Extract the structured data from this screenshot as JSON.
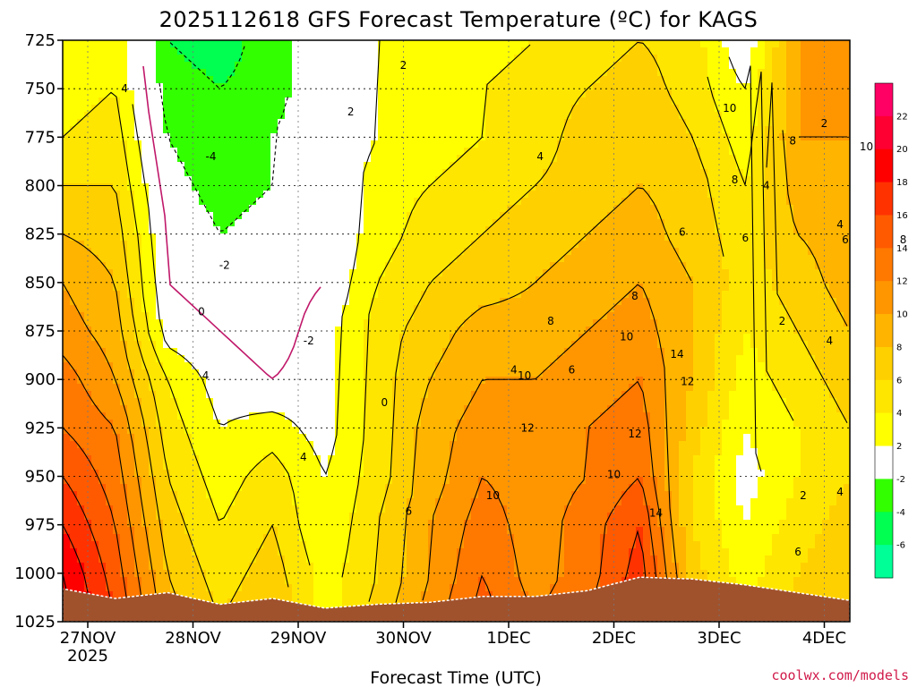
{
  "chart_data": {
    "type": "heatmap",
    "title": "2025112618 GFS Forecast Temperature (ºC) for KAGS",
    "xlabel": "Forecast Time (UTC)",
    "ylabel": "",
    "credit": "coolwx.com/models",
    "y_scale": "pressure (hPa), inverted",
    "ylim": [
      1025,
      725
    ],
    "y_ticks": [
      "725",
      "750",
      "775",
      "800",
      "825",
      "850",
      "875",
      "900",
      "925",
      "950",
      "975",
      "1000",
      "1025"
    ],
    "x_ticks": [
      "27NOV",
      "28NOV",
      "29NOV",
      "30NOV",
      "1DEC",
      "2DEC",
      "3DEC",
      "4DEC"
    ],
    "x_tick_sublabel": "2025",
    "grid": true,
    "legend": "colorbar right",
    "colorbar": {
      "labels": [
        "22",
        "20",
        "18",
        "16",
        "14",
        "12",
        "10",
        "8",
        "6",
        "4",
        "2",
        "-2",
        "-4",
        "-6"
      ],
      "colors": [
        "#ff0064",
        "#ff0032",
        "#ff0000",
        "#ff3200",
        "#ff5a00",
        "#ff7800",
        "#ff9600",
        "#ffb400",
        "#ffd000",
        "#ffe600",
        "#ffff00",
        "#ffffff",
        "#32ff00",
        "#00ff50",
        "#00ff96"
      ]
    },
    "ground_color": "#a0522d",
    "x": [
      "11-27 00Z",
      "11-27 12Z",
      "11-28 00Z",
      "11-28 12Z",
      "11-29 00Z",
      "11-29 12Z",
      "11-30 00Z",
      "11-30 12Z",
      "12-01 00Z",
      "12-01 12Z",
      "12-02 00Z",
      "12-02 12Z",
      "12-03 00Z",
      "12-03 12Z",
      "12-04 00Z",
      "12-04 06Z"
    ],
    "pressure_levels": [
      725,
      750,
      775,
      800,
      825,
      850,
      875,
      900,
      925,
      950,
      975,
      1000,
      1025
    ],
    "surface_pressure": [
      1008,
      1013,
      1010,
      1016,
      1013,
      1018,
      1016,
      1015,
      1012,
      1012,
      1009,
      1002,
      1003,
      1006,
      1010,
      1014
    ],
    "temperature_c": [
      [
        2,
        4,
        -4,
        -5,
        -3,
        0,
        2,
        2,
        3,
        4,
        5,
        6,
        5,
        0,
        10,
        10
      ],
      [
        3,
        4,
        -3,
        -4,
        -3,
        0,
        2,
        3,
        4,
        5,
        6,
        7,
        5,
        2,
        10,
        10
      ],
      [
        4,
        5,
        -2,
        -4,
        -2,
        0,
        2,
        3,
        4,
        5,
        7,
        8,
        6,
        3,
        10,
        10
      ],
      [
        6,
        6,
        -1,
        -3,
        -2,
        0,
        3,
        4,
        5,
        6,
        7,
        8,
        7,
        4,
        9,
        10
      ],
      [
        8,
        7,
        0,
        -2,
        -1,
        0,
        3,
        5,
        6,
        7,
        8,
        9,
        7,
        5,
        8,
        9
      ],
      [
        10,
        8,
        0,
        -1,
        -1,
        0,
        4,
        6,
        7,
        8,
        9,
        10,
        8,
        5,
        7,
        9
      ],
      [
        11,
        9,
        1,
        0,
        -1,
        1,
        5,
        7,
        9,
        9,
        10,
        11,
        8,
        4,
        6,
        8
      ],
      [
        13,
        10,
        4,
        1,
        0,
        1,
        5,
        8,
        10,
        10,
        11,
        12,
        8,
        3,
        5,
        7
      ],
      [
        14,
        12,
        5,
        2,
        3,
        1,
        5,
        9,
        11,
        11,
        12,
        13,
        7,
        2,
        4,
        6
      ],
      [
        16,
        13,
        6,
        3,
        5,
        2,
        5,
        9,
        12,
        11,
        12,
        14,
        6,
        1,
        4,
        6
      ],
      [
        18,
        14,
        7,
        4,
        6,
        2,
        6,
        10,
        13,
        11,
        13,
        16,
        6,
        2,
        5,
        7
      ],
      [
        20,
        15,
        8,
        5,
        7,
        3,
        6,
        10,
        14,
        11,
        13,
        17,
        7,
        3,
        6,
        8
      ],
      [
        21,
        16,
        9,
        6,
        8,
        3,
        7,
        11,
        15,
        12,
        14,
        18,
        8,
        4,
        7,
        8
      ]
    ],
    "contour_labels": [
      "4",
      "-4",
      "-2",
      "0",
      "-2",
      "2",
      "2",
      "4",
      "4",
      "0",
      "4",
      "6",
      "6",
      "4",
      "8",
      "8",
      "10",
      "10",
      "10",
      "12",
      "14",
      "12",
      "12",
      "10",
      "10",
      "14",
      "6",
      "8",
      "8",
      "6",
      "4",
      "2",
      "4",
      "6",
      "10",
      "2",
      "4",
      "2",
      "6",
      "8",
      "4"
    ]
  }
}
